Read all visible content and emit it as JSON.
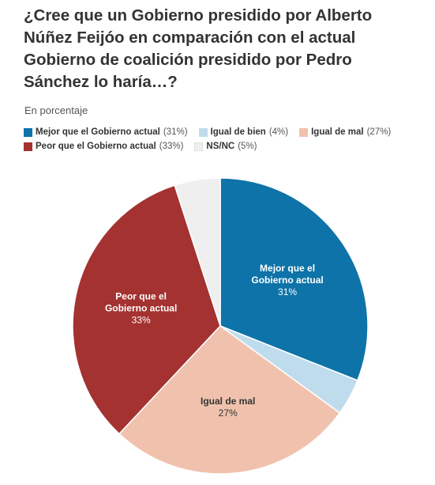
{
  "header": {
    "title": "¿Cree que un Gobierno presidido por Alberto Núñez Feijóo en comparación con el actual Gobierno de coalición presidido por Pedro Sánchez lo haría…?",
    "subtitle": "En porcentaje"
  },
  "chart_data": {
    "type": "pie",
    "title": "¿Cree que un Gobierno presidido por Alberto Núñez Feijóo en comparación con el actual Gobierno de coalición presidido por Pedro Sánchez lo haría…?",
    "subtitle": "En porcentaje",
    "legend_position": "top",
    "slices": [
      {
        "label": "Mejor que el Gobierno actual",
        "value": 31,
        "value_label": "31%",
        "legend_value": "(31%)",
        "color": "#0e73a8",
        "slice_label_lines": [
          "Mejor que el",
          "Gobierno actual"
        ],
        "text_color": "#ffffff"
      },
      {
        "label": "Igual de bien",
        "value": 4,
        "value_label": "4%",
        "legend_value": "(4%)",
        "color": "#bfdcec",
        "slice_label_lines": [],
        "text_color": "#333333"
      },
      {
        "label": "Igual de mal",
        "value": 27,
        "value_label": "27%",
        "legend_value": "(27%)",
        "color": "#f0c2ad",
        "slice_label_lines": [
          "Igual de mal"
        ],
        "text_color": "#333333"
      },
      {
        "label": "Peor que el Gobierno actual",
        "value": 33,
        "value_label": "33%",
        "legend_value": "(33%)",
        "color": "#a33230",
        "slice_label_lines": [
          "Peor que el",
          "Gobierno actual"
        ],
        "text_color": "#ffffff"
      },
      {
        "label": "NS/NC",
        "value": 5,
        "value_label": "5%",
        "legend_value": "(5%)",
        "color": "#efefef",
        "slice_label_lines": [],
        "text_color": "#333333"
      }
    ]
  }
}
